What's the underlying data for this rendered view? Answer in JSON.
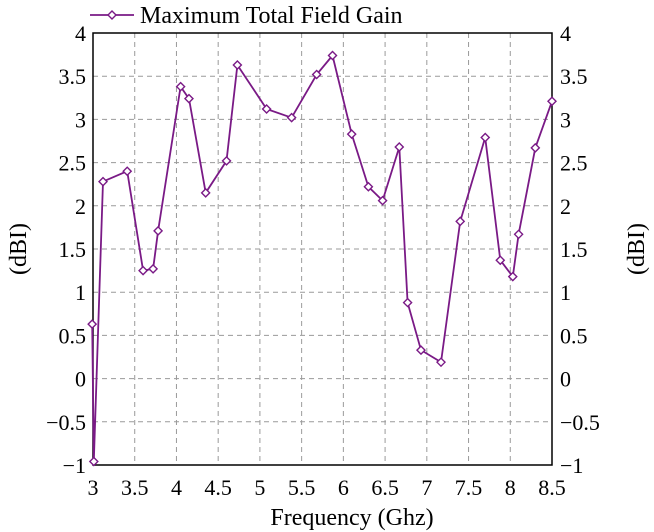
{
  "chart_data": {
    "type": "line",
    "title": "",
    "xlabel": "Frequency (Ghz)",
    "ylabel_left": "(dBI)",
    "ylabel_right": "(dBI)",
    "xlim": [
      3,
      8.5
    ],
    "ylim": [
      -1,
      4
    ],
    "xticks": [
      3,
      3.5,
      4,
      4.5,
      5,
      5.5,
      6,
      6.5,
      7,
      7.5,
      8,
      8.5
    ],
    "xtick_labels": [
      "3",
      "3.5",
      "4",
      "4.5",
      "5",
      "5.5",
      "6",
      "6.5",
      "7",
      "7.5",
      "8",
      "8.5"
    ],
    "yticks": [
      -1,
      -0.5,
      0,
      0.5,
      1,
      1.5,
      2,
      2.5,
      3,
      3.5,
      4
    ],
    "ytick_labels": [
      "−1",
      "−0.5",
      "0",
      "0.5",
      "1",
      "1.5",
      "2",
      "2.5",
      "3",
      "3.5",
      "4"
    ],
    "grid": true,
    "legend_position": "top",
    "series_color": "#7a1a86",
    "series": [
      {
        "name": "Maximum Total Field Gain",
        "x": [
          2.99,
          3.01,
          3.12,
          3.41,
          3.6,
          3.72,
          3.78,
          4.05,
          4.15,
          4.35,
          4.6,
          4.73,
          5.08,
          5.38,
          5.68,
          5.87,
          6.1,
          6.3,
          6.47,
          6.67,
          6.77,
          6.93,
          7.17,
          7.4,
          7.7,
          7.88,
          8.03,
          8.1,
          8.3,
          8.5
        ],
        "y": [
          0.63,
          -0.96,
          2.28,
          2.4,
          1.25,
          1.27,
          1.71,
          3.38,
          3.24,
          2.15,
          2.52,
          3.63,
          3.12,
          3.02,
          3.52,
          3.74,
          2.83,
          2.22,
          2.06,
          2.68,
          0.88,
          0.33,
          0.19,
          1.82,
          2.79,
          1.37,
          1.18,
          1.67,
          2.67,
          3.21
        ]
      }
    ]
  }
}
